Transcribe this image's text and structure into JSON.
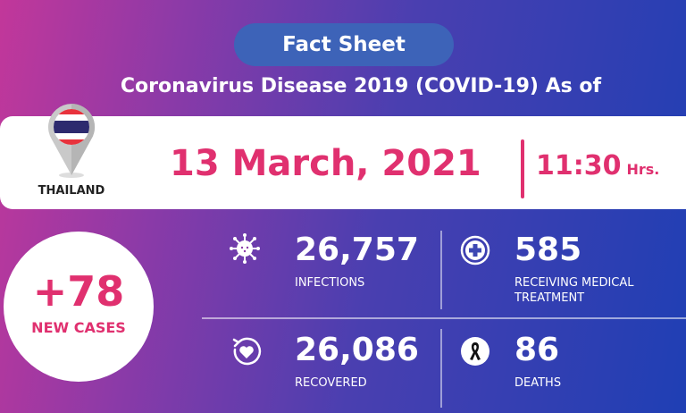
{
  "header": {
    "badge": "Fact Sheet",
    "title": "Coronavirus Disease 2019 (COVID-19) As of"
  },
  "location": {
    "country": "THAILAND",
    "icon": "thailand-flag-pin-icon"
  },
  "date": "13 March, 2021",
  "time": {
    "value": "11:30",
    "unit": "Hrs."
  },
  "new_cases": {
    "value": "+78",
    "label": "NEW CASES"
  },
  "stats": [
    {
      "value": "26,757",
      "label": "INFECTIONS",
      "icon": "virus-icon"
    },
    {
      "value": "585",
      "label": "RECEIVING MEDICAL TREATMENT",
      "icon": "medical-cross-icon"
    },
    {
      "value": "26,086",
      "label": "RECOVERED",
      "icon": "heart-recover-icon"
    },
    {
      "value": "86",
      "label": "DEATHS",
      "icon": "black-ribbon-icon"
    }
  ],
  "colors": {
    "accent": "#e0306f",
    "badge": "#3d63b8",
    "gradient_start": "#c2379a",
    "gradient_end": "#1f3fb4"
  }
}
